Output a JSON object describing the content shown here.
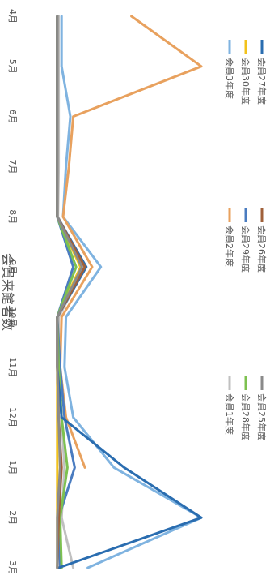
{
  "chart_data": {
    "type": "line",
    "title": "会員来館者数",
    "categories": [
      "4月",
      "5月",
      "6月",
      "7月",
      "8月",
      "9月",
      "10月",
      "11月",
      "12月",
      "1月",
      "2月",
      "3月"
    ],
    "ylim": [
      0,
      1000
    ],
    "grid": false,
    "legend": "bottom",
    "series": [
      {
        "name": "会員3年度",
        "color": "#7fb3e0",
        "values": [
          40,
          40,
          100,
          70,
          50,
          310,
          70,
          60,
          120,
          400,
          1000,
          220
        ]
      },
      {
        "name": "会員2年度",
        "color": "#e8a15e",
        "values": [
          520,
          1000,
          120,
          90,
          50,
          250,
          40,
          30,
          70,
          200,
          null,
          null
        ]
      },
      {
        "name": "会員1年度",
        "color": "#c0c0c0",
        "values": [
          20,
          20,
          20,
          20,
          15,
          200,
          20,
          20,
          40,
          60,
          40,
          120
        ]
      },
      {
        "name": "会員30年度",
        "color": "#f2c21b",
        "values": [
          10,
          10,
          10,
          10,
          10,
          170,
          10,
          10,
          10,
          10,
          10,
          10
        ]
      },
      {
        "name": "会員29年度",
        "color": "#4a7cc0",
        "values": [
          10,
          10,
          10,
          10,
          10,
          120,
          10,
          30,
          60,
          130,
          20,
          30
        ]
      },
      {
        "name": "会員28年度",
        "color": "#7dc150",
        "values": [
          10,
          10,
          10,
          10,
          10,
          140,
          10,
          20,
          40,
          80,
          30,
          40
        ]
      },
      {
        "name": "会員27年度",
        "color": "#2a6db0",
        "values": [
          10,
          10,
          10,
          10,
          10,
          210,
          10,
          10,
          40,
          470,
          1000,
          20
        ]
      },
      {
        "name": "会員26年度",
        "color": "#a0603a",
        "values": [
          10,
          10,
          10,
          10,
          10,
          200,
          10,
          10,
          20,
          40,
          20,
          10
        ]
      },
      {
        "name": "会員25年度",
        "color": "#8a8a8a",
        "values": [
          10,
          10,
          10,
          10,
          10,
          180,
          10,
          10,
          20,
          30,
          10,
          10
        ]
      }
    ]
  }
}
